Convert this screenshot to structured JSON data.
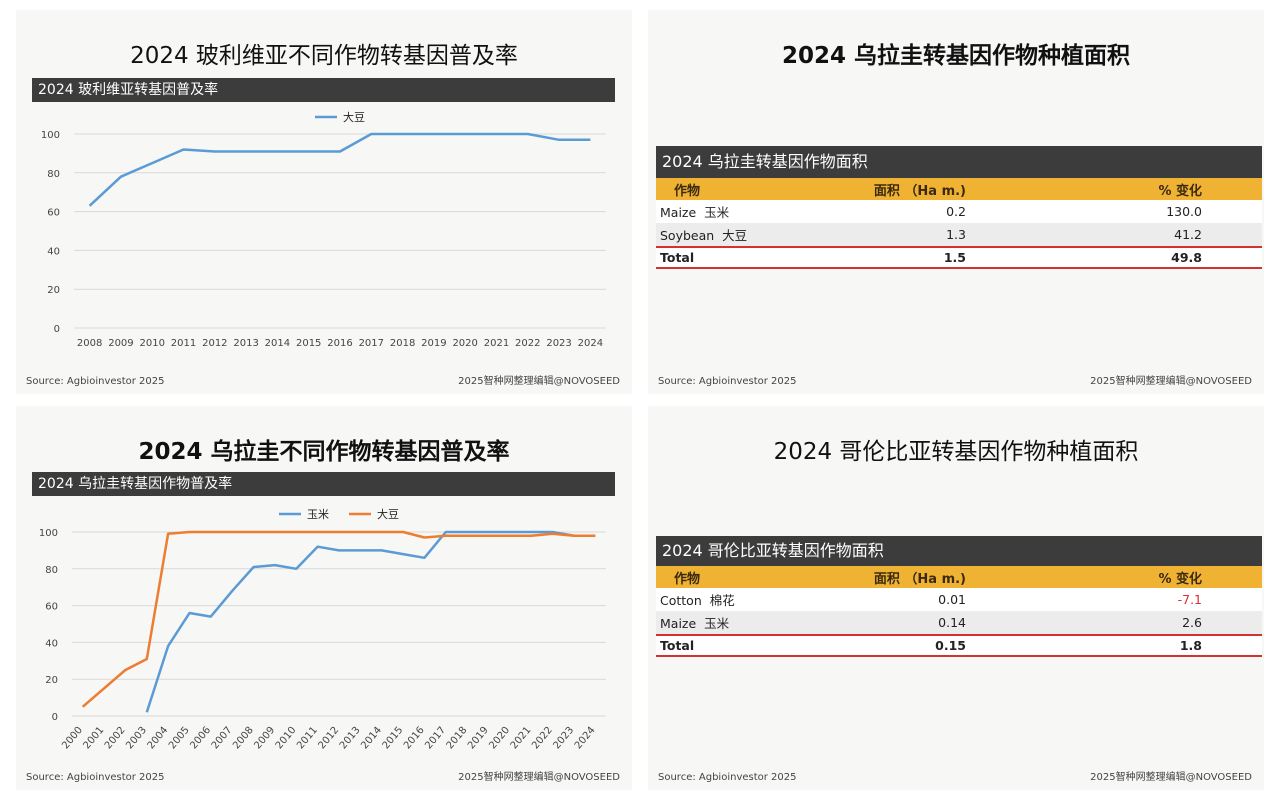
{
  "panels": {
    "p1": {
      "title": "2024 玻利维亚不同作物转基因普及率",
      "bar_title": "2024 玻利维亚转基因普及率",
      "source": "Source: Agbioinvestor 2025",
      "credit": "2025智种网整理编辑@NOVOSEED"
    },
    "p2": {
      "title": "2024 乌拉圭转基因作物种植面积",
      "bar_title": "2024 乌拉圭转基因作物面积",
      "headers": {
        "crop": "作物",
        "area": "面积 （Ha m.)",
        "change": "%  变化"
      },
      "rows": [
        {
          "crop_en": "Maize",
          "crop_zh": "玉米",
          "area": "0.2",
          "change": "130.0"
        },
        {
          "crop_en": "Soybean",
          "crop_zh": "大豆",
          "area": "1.3",
          "change": "41.2"
        }
      ],
      "total": {
        "label": "Total",
        "area": "1.5",
        "change": "49.8"
      },
      "source": "Source: Agbioinvestor 2025",
      "credit": "2025智种网整理编辑@NOVOSEED"
    },
    "p3": {
      "title": "2024 乌拉圭不同作物转基因普及率",
      "bar_title": "2024 乌拉圭转基因作物普及率",
      "source": "Source: Agbioinvestor 2025",
      "credit": "2025智种网整理编辑@NOVOSEED"
    },
    "p4": {
      "title": "2024 哥伦比亚转基因作物种植面积",
      "bar_title": "2024 哥伦比亚转基因作物面积",
      "headers": {
        "crop": "作物",
        "area": "面积 （Ha m.)",
        "change": "%  变化"
      },
      "rows": [
        {
          "crop_en": "Cotton",
          "crop_zh": "棉花",
          "area": "0.01",
          "change": "-7.1"
        },
        {
          "crop_en": "Maize",
          "crop_zh": "玉米",
          "area": "0.14",
          "change": "2.6"
        }
      ],
      "total": {
        "label": "Total",
        "area": "0.15",
        "change": "1.8"
      },
      "source": "Source: Agbioinvestor 2025",
      "credit": "2025智种网整理编辑@NOVOSEED"
    }
  },
  "chart_data": [
    {
      "type": "line",
      "title": "2024 玻利维亚转基因普及率",
      "x": [
        2008,
        2009,
        2010,
        2011,
        2012,
        2013,
        2014,
        2015,
        2016,
        2017,
        2018,
        2019,
        2020,
        2021,
        2022,
        2023,
        2024
      ],
      "series": [
        {
          "name": "大豆",
          "color": "#5b9bd5",
          "values": [
            63,
            78,
            85,
            92,
            91,
            91,
            91,
            91,
            91,
            100,
            100,
            100,
            100,
            100,
            100,
            97,
            97
          ]
        }
      ],
      "ylim": [
        0,
        100
      ],
      "yticks": [
        0,
        20,
        40,
        60,
        80,
        100
      ],
      "grid": true,
      "legend": "top-center"
    },
    {
      "type": "line",
      "title": "2024 乌拉圭转基因作物普及率",
      "x": [
        2000,
        2001,
        2002,
        2003,
        2004,
        2005,
        2006,
        2007,
        2008,
        2009,
        2010,
        2011,
        2012,
        2013,
        2014,
        2015,
        2016,
        2017,
        2018,
        2019,
        2020,
        2021,
        2022,
        2023,
        2024
      ],
      "series": [
        {
          "name": "玉米",
          "color": "#5b9bd5",
          "values": [
            null,
            null,
            null,
            2,
            38,
            56,
            54,
            68,
            81,
            82,
            80,
            92,
            90,
            90,
            90,
            88,
            86,
            100,
            100,
            100,
            100,
            100,
            100,
            98,
            98
          ]
        },
        {
          "name": "大豆",
          "color": "#ed7d31",
          "values": [
            5,
            15,
            25,
            31,
            99,
            100,
            100,
            100,
            100,
            100,
            100,
            100,
            100,
            100,
            100,
            100,
            97,
            98,
            98,
            98,
            98,
            98,
            99,
            98,
            98
          ]
        }
      ],
      "ylim": [
        0,
        100
      ],
      "yticks": [
        0,
        20,
        40,
        60,
        80,
        100
      ],
      "grid": true,
      "legend": "top-center"
    }
  ]
}
